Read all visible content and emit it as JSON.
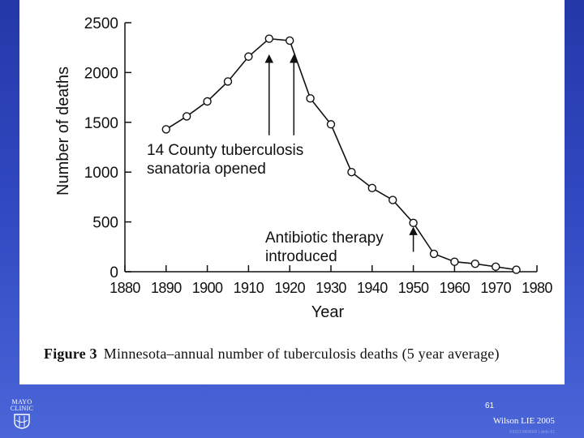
{
  "chart_data": {
    "type": "line",
    "title": "",
    "xlabel": "Year",
    "ylabel": "Number of deaths",
    "xlim": [
      1880,
      1980
    ],
    "ylim": [
      0,
      2500
    ],
    "xticks": [
      1880,
      1890,
      1900,
      1910,
      1920,
      1930,
      1940,
      1950,
      1960,
      1970,
      1980
    ],
    "yticks": [
      0,
      500,
      1000,
      1500,
      2000,
      2500
    ],
    "series": [
      {
        "name": "Tuberculosis deaths (5 year average)",
        "x": [
          1890,
          1895,
          1900,
          1905,
          1910,
          1915,
          1920,
          1925,
          1930,
          1935,
          1940,
          1945,
          1950,
          1955,
          1960,
          1965,
          1970,
          1975
        ],
        "y": [
          1430,
          1560,
          1710,
          1910,
          2160,
          2340,
          2320,
          1740,
          1480,
          1000,
          840,
          720,
          490,
          180,
          100,
          80,
          50,
          20
        ]
      }
    ],
    "annotations": [
      {
        "text_lines": [
          "14 County tuberculosis",
          "sanatoria opened"
        ],
        "arrow_x": [
          1915,
          1921
        ],
        "arrow_from_y": 1370,
        "arrow_to_y": 2140
      },
      {
        "text_lines": [
          "Antibiotic therapy",
          "introduced"
        ],
        "arrow_x": [
          1950
        ],
        "arrow_from_y": 200,
        "arrow_to_y": 410
      }
    ]
  },
  "caption": {
    "label": "Figure 3",
    "text": "Minnesota–annual number of tuberculosis deaths (5 year average)"
  },
  "footer": {
    "logo_line1": "MAYO",
    "logo_line2": "CLINIC",
    "slide_number": "61",
    "citation": "Wilson LIE 2005",
    "copyright": "©2013 MFMER | slide-61"
  },
  "colors": {
    "background": "#3048c0",
    "panel": "#ffffff",
    "ink": "#111111"
  }
}
